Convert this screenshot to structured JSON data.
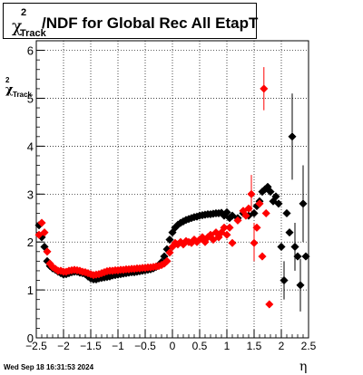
{
  "title": {
    "symbol": "χ",
    "sup": "2",
    "sub": "Track",
    "text": "/NDF for Global Rec All EtapT"
  },
  "footer_timestamp": "Wed Sep 18 16:31:53 2024",
  "colors": {
    "series_black": "#000000",
    "series_red": "#ff0000",
    "grid": "#000000"
  },
  "chart_data": {
    "type": "scatter",
    "title": "χ²_Track/NDF for Global Rec All EtapT",
    "xlabel": "η",
    "ylabel": "χ²_Track/NDF",
    "xlim": [
      -2.5,
      2.5
    ],
    "ylim": [
      0,
      6.2
    ],
    "x_ticks": [
      -2.5,
      -2,
      -1.5,
      -1,
      -0.5,
      0,
      0.5,
      1,
      1.5,
      2,
      2.5
    ],
    "x_tick_labels": [
      "−2.5",
      "−2",
      "−1.5",
      "−1",
      "−0.5",
      "0",
      "0.5",
      "1",
      "1.5",
      "2",
      "2.5"
    ],
    "y_ticks": [
      0,
      1,
      2,
      3,
      4,
      5,
      6
    ],
    "y_tick_labels": [
      "0",
      "1",
      "2",
      "3",
      "4",
      "5",
      "6"
    ],
    "grid": true,
    "series": [
      {
        "color": "black",
        "marker": "diamond",
        "points": [
          [
            -2.45,
            2.35
          ],
          [
            -2.4,
            2.1
          ],
          [
            -2.35,
            1.9
          ],
          [
            -2.3,
            1.6
          ],
          [
            -2.25,
            1.5
          ],
          [
            -2.2,
            1.45
          ],
          [
            -2.15,
            1.42
          ],
          [
            -2.1,
            1.38
          ],
          [
            -2.05,
            1.35
          ],
          [
            -2.0,
            1.32
          ],
          [
            -1.95,
            1.33
          ],
          [
            -1.9,
            1.35
          ],
          [
            -1.85,
            1.37
          ],
          [
            -1.8,
            1.38
          ],
          [
            -1.75,
            1.38
          ],
          [
            -1.7,
            1.36
          ],
          [
            -1.65,
            1.35
          ],
          [
            -1.6,
            1.33
          ],
          [
            -1.55,
            1.28
          ],
          [
            -1.5,
            1.24
          ],
          [
            -1.45,
            1.22
          ],
          [
            -1.4,
            1.22
          ],
          [
            -1.35,
            1.24
          ],
          [
            -1.3,
            1.25
          ],
          [
            -1.25,
            1.26
          ],
          [
            -1.2,
            1.27
          ],
          [
            -1.15,
            1.28
          ],
          [
            -1.1,
            1.3
          ],
          [
            -1.05,
            1.31
          ],
          [
            -1.0,
            1.32
          ],
          [
            -0.95,
            1.33
          ],
          [
            -0.9,
            1.34
          ],
          [
            -0.85,
            1.35
          ],
          [
            -0.8,
            1.36
          ],
          [
            -0.75,
            1.37
          ],
          [
            -0.7,
            1.37
          ],
          [
            -0.65,
            1.38
          ],
          [
            -0.6,
            1.39
          ],
          [
            -0.55,
            1.4
          ],
          [
            -0.5,
            1.41
          ],
          [
            -0.45,
            1.42
          ],
          [
            -0.4,
            1.43
          ],
          [
            -0.35,
            1.45
          ],
          [
            -0.3,
            1.48
          ],
          [
            -0.25,
            1.52
          ],
          [
            -0.2,
            1.58
          ],
          [
            -0.15,
            1.7
          ],
          [
            -0.1,
            1.85
          ],
          [
            -0.05,
            2.05
          ],
          [
            0.0,
            2.2
          ],
          [
            0.05,
            2.3
          ],
          [
            0.1,
            2.36
          ],
          [
            0.15,
            2.4
          ],
          [
            0.2,
            2.43
          ],
          [
            0.25,
            2.46
          ],
          [
            0.3,
            2.48
          ],
          [
            0.35,
            2.5
          ],
          [
            0.4,
            2.52
          ],
          [
            0.45,
            2.53
          ],
          [
            0.5,
            2.55
          ],
          [
            0.55,
            2.56
          ],
          [
            0.6,
            2.57
          ],
          [
            0.65,
            2.58
          ],
          [
            0.7,
            2.58
          ],
          [
            0.75,
            2.59
          ],
          [
            0.8,
            2.6
          ],
          [
            0.85,
            2.6
          ],
          [
            0.9,
            2.61
          ],
          [
            0.95,
            2.55
          ],
          [
            1.0,
            2.62
          ],
          [
            1.05,
            2.5
          ],
          [
            1.1,
            2.55
          ],
          [
            1.2,
            2.5
          ],
          [
            1.3,
            2.6
          ],
          [
            1.4,
            2.55
          ],
          [
            1.5,
            2.6
          ],
          [
            1.55,
            2.75
          ],
          [
            1.6,
            2.85
          ],
          [
            1.65,
            3.05
          ],
          [
            1.7,
            3.1
          ],
          [
            1.75,
            3.15
          ],
          [
            1.8,
            3.05
          ],
          [
            1.85,
            2.85
          ],
          [
            1.9,
            2.95
          ],
          [
            1.95,
            2.8
          ],
          [
            2.0,
            1.9
          ],
          [
            2.05,
            1.2
          ],
          [
            2.1,
            2.6
          ],
          [
            2.15,
            2.2
          ],
          [
            2.2,
            4.2
          ],
          [
            2.25,
            1.9
          ],
          [
            2.3,
            1.7
          ],
          [
            2.35,
            1.1
          ],
          [
            2.4,
            2.8
          ],
          [
            2.45,
            1.7
          ]
        ]
      },
      {
        "color": "red",
        "marker": "diamond",
        "points": [
          [
            -2.45,
            2.15
          ],
          [
            -2.4,
            2.4
          ],
          [
            -2.35,
            2.2
          ],
          [
            -2.3,
            1.8
          ],
          [
            -2.25,
            1.55
          ],
          [
            -2.2,
            1.48
          ],
          [
            -2.15,
            1.44
          ],
          [
            -2.1,
            1.4
          ],
          [
            -2.05,
            1.4
          ],
          [
            -2.0,
            1.38
          ],
          [
            -1.95,
            1.38
          ],
          [
            -1.9,
            1.4
          ],
          [
            -1.85,
            1.41
          ],
          [
            -1.8,
            1.42
          ],
          [
            -1.75,
            1.41
          ],
          [
            -1.7,
            1.4
          ],
          [
            -1.65,
            1.38
          ],
          [
            -1.6,
            1.37
          ],
          [
            -1.55,
            1.35
          ],
          [
            -1.5,
            1.33
          ],
          [
            -1.45,
            1.31
          ],
          [
            -1.4,
            1.32
          ],
          [
            -1.35,
            1.33
          ],
          [
            -1.3,
            1.35
          ],
          [
            -1.25,
            1.37
          ],
          [
            -1.2,
            1.39
          ],
          [
            -1.15,
            1.4
          ],
          [
            -1.1,
            1.4
          ],
          [
            -1.05,
            1.41
          ],
          [
            -1.0,
            1.41
          ],
          [
            -0.95,
            1.42
          ],
          [
            -0.9,
            1.42
          ],
          [
            -0.85,
            1.43
          ],
          [
            -0.8,
            1.43
          ],
          [
            -0.75,
            1.44
          ],
          [
            -0.7,
            1.44
          ],
          [
            -0.65,
            1.45
          ],
          [
            -0.6,
            1.45
          ],
          [
            -0.55,
            1.46
          ],
          [
            -0.5,
            1.46
          ],
          [
            -0.45,
            1.47
          ],
          [
            -0.4,
            1.47
          ],
          [
            -0.35,
            1.48
          ],
          [
            -0.3,
            1.49
          ],
          [
            -0.25,
            1.5
          ],
          [
            -0.2,
            1.52
          ],
          [
            -0.15,
            1.55
          ],
          [
            -0.1,
            1.6
          ],
          [
            -0.05,
            1.78
          ],
          [
            0.0,
            1.9
          ],
          [
            0.05,
            1.98
          ],
          [
            0.1,
            1.95
          ],
          [
            0.15,
            2.0
          ],
          [
            0.2,
            1.95
          ],
          [
            0.25,
            2.02
          ],
          [
            0.3,
            2.0
          ],
          [
            0.35,
            1.98
          ],
          [
            0.4,
            2.05
          ],
          [
            0.45,
            2.0
          ],
          [
            0.5,
            2.05
          ],
          [
            0.55,
            2.1
          ],
          [
            0.6,
            2.0
          ],
          [
            0.65,
            2.1
          ],
          [
            0.7,
            2.15
          ],
          [
            0.75,
            2.05
          ],
          [
            0.8,
            2.2
          ],
          [
            0.85,
            2.1
          ],
          [
            0.9,
            2.2
          ],
          [
            0.95,
            2.3
          ],
          [
            1.0,
            2.15
          ],
          [
            1.05,
            2.3
          ],
          [
            1.1,
            1.98
          ],
          [
            1.2,
            2.45
          ],
          [
            1.3,
            2.65
          ],
          [
            1.35,
            2.55
          ],
          [
            1.4,
            2.7
          ],
          [
            1.45,
            3.0
          ],
          [
            1.5,
            1.98
          ],
          [
            1.55,
            2.3
          ],
          [
            1.6,
            2.8
          ],
          [
            1.65,
            1.7
          ],
          [
            1.68,
            5.2
          ],
          [
            1.72,
            2.6
          ],
          [
            1.78,
            0.7
          ]
        ]
      }
    ],
    "error_bars": [
      {
        "series": "red",
        "x": 1.68,
        "low": 4.75,
        "high": 5.65
      },
      {
        "series": "red",
        "x": 1.45,
        "low": 2.6,
        "high": 3.4
      },
      {
        "series": "red",
        "x": 1.5,
        "low": 1.6,
        "high": 2.4
      },
      {
        "series": "black",
        "x": 2.2,
        "low": 3.3,
        "high": 5.1
      },
      {
        "series": "black",
        "x": 2.4,
        "low": 2.0,
        "high": 3.6
      },
      {
        "series": "black",
        "x": 2.35,
        "low": 0.55,
        "high": 1.65
      },
      {
        "series": "black",
        "x": 2.05,
        "low": 0.8,
        "high": 1.6
      },
      {
        "series": "black",
        "x": 2.25,
        "low": 1.4,
        "high": 2.4
      }
    ]
  }
}
